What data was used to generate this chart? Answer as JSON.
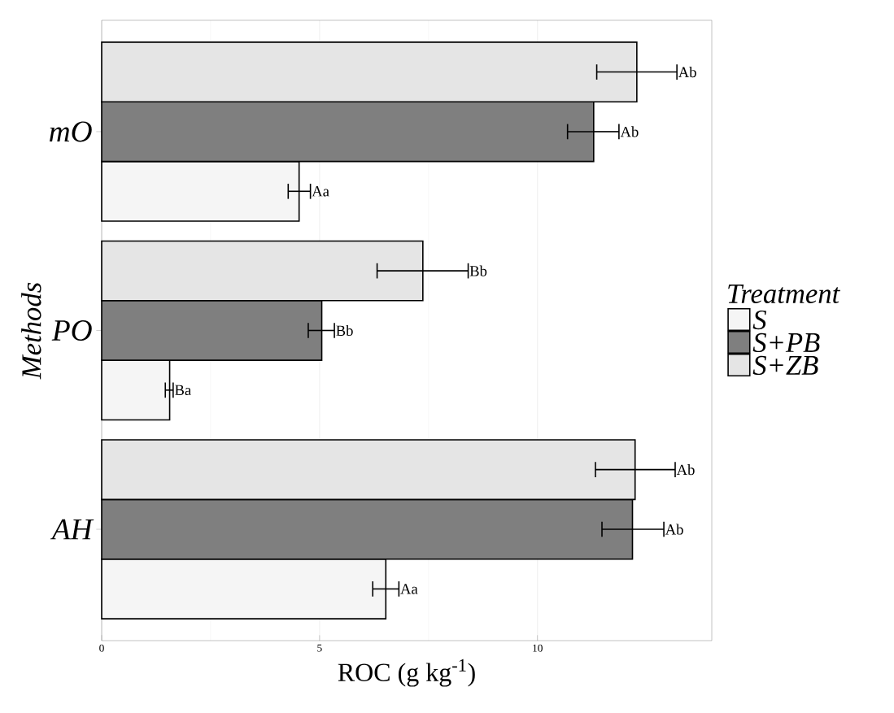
{
  "chart_data": {
    "type": "bar",
    "orientation": "horizontal",
    "xlabel": "ROC (g kg$^{-1}$)",
    "ylabel": "Methods",
    "legend_title": "Treatment",
    "legend": "right",
    "grid": "x",
    "categories": [
      "mO",
      "PO",
      "AH"
    ],
    "xlim": [
      0,
      14
    ],
    "xticks": [
      0,
      5,
      10
    ],
    "series": [
      {
        "name": "S",
        "color": "#f5f5f5",
        "values": [
          4.53,
          1.56,
          6.52
        ],
        "errors": [
          [
            4.28,
            4.79
          ],
          [
            1.46,
            1.64
          ],
          [
            6.22,
            6.82
          ]
        ],
        "value_labels": [
          "Aa",
          "Ba",
          "Aa"
        ]
      },
      {
        "name": "S+PB",
        "color": "#7f7f7f",
        "values": [
          11.29,
          5.05,
          12.18
        ],
        "errors": [
          [
            10.69,
            11.87
          ],
          [
            4.74,
            5.34
          ],
          [
            11.48,
            12.9
          ]
        ],
        "value_labels": [
          "Ab",
          "Bb",
          "Ab"
        ]
      },
      {
        "name": "S+ZB",
        "color": "#e5e5e5",
        "values": [
          12.28,
          7.37,
          12.24
        ],
        "errors": [
          [
            11.36,
            13.2
          ],
          [
            6.32,
            8.41
          ],
          [
            11.33,
            13.16
          ]
        ],
        "value_labels": [
          "Ab",
          "Bb",
          "Ab"
        ]
      }
    ]
  }
}
